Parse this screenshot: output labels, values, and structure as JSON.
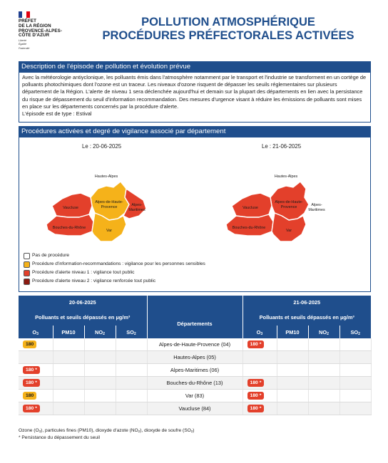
{
  "logo": {
    "line1": "PRÉFET",
    "lines": [
      "DE LA RÉGION",
      "PROVENCE-ALPES-",
      "CÔTE D'AZUR"
    ],
    "motto": [
      "Liberté",
      "Égalité",
      "Fraternité"
    ],
    "colors": [
      "#1f3f8f",
      "#ffffff",
      "#e1000f"
    ]
  },
  "title": {
    "line1": "POLLUTION ATMOSPHÉRIQUE",
    "line2": "PROCÉDURES PRÉFECTORALES ACTIVÉES"
  },
  "description": {
    "heading": "Description de l'épisode de pollution et évolution prévue",
    "text": "Avec la météorologie antiyclonique, les polluants émis dans l'atmosphère notamment par le transport et l'industrie se transforment en un cortège de polluants photochimiques dont l'ozone est un traceur. Les niveaux d'ozone risquent de dépasser les seuils réglementaires sur plusieurs département de la Région. L'alerte de niveau 1 sera déclenchée aujourd'hui et demain sur la plupart des départements en lien avec la persistance du risque de dépassement du seuil d'information recommandation. Des mesures d'urgence visant à réduire les émissions de polluants sont mises en place sur les départements concernés par la procédure d'alerte.",
    "type_line": "L'épisode est de type : Estival"
  },
  "maps": {
    "heading": "Procédures activées et degré de vigilance associé par département",
    "map1": {
      "date_label": "Le : 20-06-2025",
      "departments": {
        "hautes_alpes": {
          "label": "Hautes-Alpes",
          "color": "#ffffff"
        },
        "ahp": {
          "label": "Alpes-de-Haute-Provence",
          "color": "#f5b21a"
        },
        "alpes_maritimes": {
          "label": "Alpes-Maritimes",
          "color": "#e3402b"
        },
        "vaucluse": {
          "label": "Vaucluse",
          "color": "#e3402b"
        },
        "bouches_du_rhone": {
          "label": "Bouches-du-Rhône",
          "color": "#e3402b"
        },
        "var": {
          "label": "Var",
          "color": "#f5b21a"
        }
      }
    },
    "map2": {
      "date_label": "Le : 21-06-2025",
      "departments": {
        "hautes_alpes": {
          "label": "Hautes-Alpes",
          "color": "#ffffff"
        },
        "ahp": {
          "label": "Alpes-de-Haute-Provence",
          "color": "#e3402b"
        },
        "alpes_maritimes": {
          "label": "Alpes-Maritimes",
          "color": "#ffffff"
        },
        "vaucluse": {
          "label": "Vaucluse",
          "color": "#e3402b"
        },
        "bouches_du_rhone": {
          "label": "Bouches-du-Rhône",
          "color": "#e3402b"
        },
        "var": {
          "label": "Var",
          "color": "#e3402b"
        }
      }
    },
    "legend": [
      {
        "color": "#ffffff",
        "label": "Pas de procédure"
      },
      {
        "color": "#f5b21a",
        "label": "Procédure d'information-recommandations : vigilance pour les personnes sensibles"
      },
      {
        "color": "#e3402b",
        "label": "Procédure d'alerte niveau 1 : vigilance tout public"
      },
      {
        "color": "#8b1a10",
        "label": "Procédure d'alerte niveau 2 : vigilance renforcée tout public"
      }
    ]
  },
  "table": {
    "date_left": "20-06-2025",
    "date_right": "21-06-2025",
    "pollutants_header": "Polluants et seuils dépassés en µg/m³",
    "departments_header": "Départements",
    "columns": {
      "o3": "O",
      "o3_sub": "3",
      "pm10": "PM10",
      "no2": "NO",
      "no2_sub": "2",
      "so2": "SO",
      "so2_sub": "2"
    },
    "rows": [
      {
        "department": "Alpes-de-Haute-Provence (04)",
        "left_o3": "180",
        "left_color": "#f5b21a",
        "right_o3": "180 *",
        "right_color": "#e3402b"
      },
      {
        "department": "Hautes-Alpes (05)",
        "left_o3": "",
        "left_color": "",
        "right_o3": "",
        "right_color": ""
      },
      {
        "department": "Alpes-Maritimes (06)",
        "left_o3": "180 *",
        "left_color": "#e3402b",
        "right_o3": "",
        "right_color": ""
      },
      {
        "department": "Bouches-du-Rhône (13)",
        "left_o3": "180 *",
        "left_color": "#e3402b",
        "right_o3": "180 *",
        "right_color": "#e3402b"
      },
      {
        "department": "Var (83)",
        "left_o3": "180",
        "left_color": "#f5b21a",
        "right_o3": "180 *",
        "right_color": "#e3402b"
      },
      {
        "department": "Vaucluse (84)",
        "left_o3": "180 *",
        "left_color": "#e3402b",
        "right_o3": "180 *",
        "right_color": "#e3402b"
      }
    ]
  },
  "footer": {
    "line1_parts": [
      "Ozone (O",
      "3",
      "), particules fines (PM10), dioxyde d'azote (NO",
      "2",
      "), dioxyde de soufre (SO",
      "2",
      ")"
    ],
    "line2": "* Persistance du dépassement du seuil"
  }
}
